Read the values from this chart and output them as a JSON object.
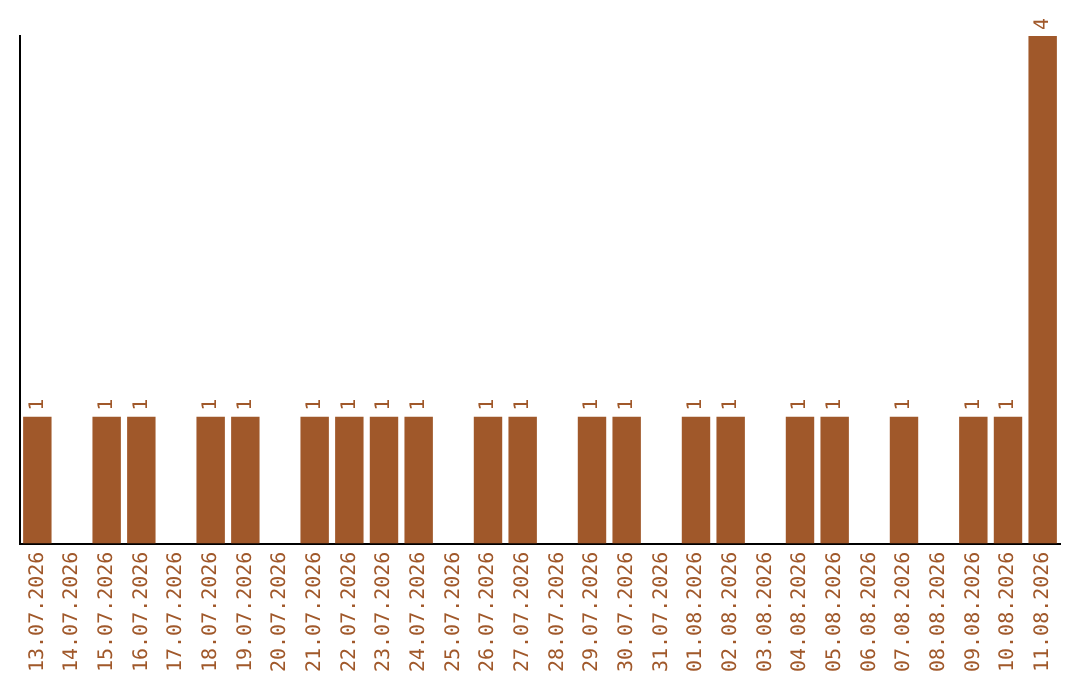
{
  "chart_data": {
    "type": "bar",
    "categories": [
      "13.07.2026",
      "14.07.2026",
      "15.07.2026",
      "16.07.2026",
      "17.07.2026",
      "18.07.2026",
      "19.07.2026",
      "20.07.2026",
      "21.07.2026",
      "22.07.2026",
      "23.07.2026",
      "24.07.2026",
      "25.07.2026",
      "26.07.2026",
      "27.07.2026",
      "28.07.2026",
      "29.07.2026",
      "30.07.2026",
      "31.07.2026",
      "01.08.2026",
      "02.08.2026",
      "03.08.2026",
      "04.08.2026",
      "05.08.2026",
      "06.08.2026",
      "07.08.2026",
      "08.08.2026",
      "09.08.2026",
      "10.08.2026",
      "11.08.2026"
    ],
    "values": [
      1,
      null,
      1,
      1,
      null,
      1,
      1,
      null,
      1,
      1,
      1,
      1,
      null,
      1,
      1,
      null,
      1,
      1,
      null,
      1,
      1,
      null,
      1,
      1,
      null,
      1,
      null,
      1,
      1,
      4
    ],
    "color": "#a0582a",
    "ylim": [
      0,
      4
    ],
    "data_labels": true,
    "tick_labels": "x",
    "grid": false,
    "legend": false
  }
}
